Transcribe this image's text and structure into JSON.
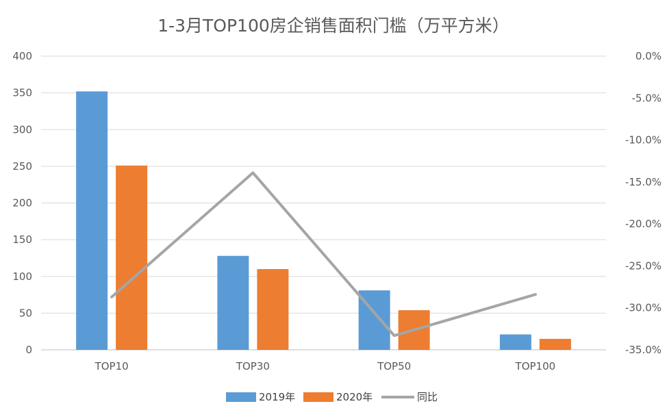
{
  "chart_data": {
    "type": "bar",
    "title": "1-3月TOP100房企销售面积门槛（万平方米）",
    "categories": [
      "TOP10",
      "TOP30",
      "TOP50",
      "TOP100"
    ],
    "series": [
      {
        "name": "2019年",
        "kind": "bar",
        "axis": "left",
        "color": "#5B9BD5",
        "values": [
          352,
          128,
          81,
          21
        ]
      },
      {
        "name": "2020年",
        "kind": "bar",
        "axis": "left",
        "color": "#ED7D31",
        "values": [
          251,
          110,
          54,
          15
        ]
      },
      {
        "name": "同比",
        "kind": "line",
        "axis": "right",
        "color": "#A5A5A5",
        "values": [
          -28.7,
          -13.9,
          -33.3,
          -28.4
        ]
      }
    ],
    "y_left": {
      "ylim": [
        0,
        400
      ],
      "ticks": [
        "0",
        "50",
        "100",
        "150",
        "200",
        "250",
        "300",
        "350",
        "400"
      ]
    },
    "y_right": {
      "ylim": [
        -35,
        0
      ],
      "ticks": [
        "-35.0%",
        "-30.0%",
        "-25.0%",
        "-20.0%",
        "-15.0%",
        "-10.0%",
        "-5.0%",
        "0.0%"
      ]
    },
    "grid": true,
    "legend_position": "bottom"
  }
}
